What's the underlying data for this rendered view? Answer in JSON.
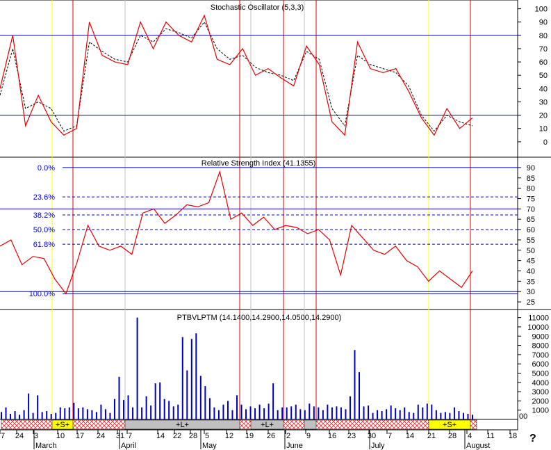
{
  "colors": {
    "red": "#e00000",
    "blue": "#0000c0",
    "yellow": "#ffff00",
    "gray": "#c0c0c0",
    "hatch": "#ff0000"
  },
  "help_glyph": "?",
  "x_axis": {
    "day_labels": [
      "7",
      "24",
      "3",
      "10",
      "17",
      "24",
      "31",
      "7",
      "14",
      "22",
      "28",
      "5",
      "12",
      "19",
      "26",
      "2",
      "9",
      "16",
      "23",
      "30",
      "7",
      "14",
      "21",
      "28",
      "4",
      "11",
      "18"
    ],
    "month_labels": [
      "March",
      "April",
      "May",
      "June",
      "July",
      "August"
    ]
  },
  "stochastic": {
    "title": "Stochastic Oscillator (5,3,3)",
    "ticks": [
      "100",
      "90",
      "80",
      "70",
      "60",
      "50",
      "40",
      "30",
      "20",
      "10",
      "0"
    ],
    "ylim": [
      -10,
      105
    ],
    "reference_lines": [
      80,
      20
    ],
    "k_values": [
      40,
      80,
      12,
      35,
      15,
      5,
      10,
      90,
      65,
      60,
      58,
      90,
      70,
      90,
      80,
      75,
      95,
      62,
      58,
      70,
      50,
      55,
      48,
      42,
      72,
      58,
      15,
      5,
      75,
      55,
      52,
      55,
      38,
      18,
      5,
      25,
      10,
      18
    ],
    "d_values": [
      35,
      70,
      25,
      30,
      25,
      8,
      12,
      75,
      68,
      62,
      60,
      80,
      75,
      85,
      82,
      78,
      90,
      70,
      62,
      65,
      56,
      52,
      50,
      46,
      68,
      62,
      25,
      12,
      65,
      58,
      55,
      52,
      42,
      20,
      8,
      20,
      15,
      12
    ]
  },
  "rsi": {
    "title": "Relative Strength Index (41.1355)",
    "ticks": [
      "90",
      "85",
      "80",
      "75",
      "70",
      "65",
      "60",
      "55",
      "50",
      "45",
      "40",
      "35",
      "30",
      "25"
    ],
    "ylim": [
      22,
      93
    ],
    "reference_lines": [
      70,
      30
    ],
    "fib_labels": [
      "0.0%",
      "23.6%",
      "38.2%",
      "50.0%",
      "61.8%",
      "100.0%"
    ],
    "fib_values": [
      90,
      75.8,
      67.1,
      60,
      52.9,
      29
    ],
    "values": [
      52,
      55,
      43,
      47,
      46,
      36,
      29,
      44,
      62,
      52,
      50,
      52,
      48,
      68,
      70,
      63,
      67,
      72,
      71,
      73,
      88,
      65,
      68,
      62,
      66,
      60,
      62,
      61,
      58,
      60,
      55,
      38,
      62,
      56,
      50,
      48,
      52,
      45,
      42,
      35,
      40,
      36,
      32,
      40
    ]
  },
  "volume": {
    "title": "PTBVLPTM (14.1400,14.2900,14.0500,14.2900)",
    "ticks": [
      "11000",
      "10000",
      "9000",
      "8000",
      "7000",
      "6000",
      "5000",
      "4000",
      "3000",
      "2000",
      "1000",
      "00"
    ],
    "ylim": [
      0,
      11500
    ],
    "values": [
      800,
      1300,
      600,
      900,
      500,
      1000,
      2800,
      700,
      2600,
      800,
      900,
      600,
      700,
      1300,
      1200,
      1300,
      1800,
      1200,
      1300,
      1100,
      1000,
      800,
      1600,
      1100,
      700,
      2200,
      4600,
      2100,
      2600,
      1300,
      11000,
      1300,
      2500,
      1500,
      3900,
      4000,
      2200,
      2000,
      1400,
      1600,
      8900,
      5300,
      8700,
      9300,
      4700,
      3600,
      2300,
      1300,
      1000,
      1600,
      2000,
      1000,
      2600,
      1600,
      1100,
      1400,
      1200,
      1600,
      1200,
      1700,
      3900,
      1000,
      1300,
      1300,
      1400,
      1600,
      1100,
      1000,
      1700,
      1400,
      1300,
      1000,
      1600,
      1300,
      1400,
      1300,
      1100,
      2500,
      7500,
      5100,
      1400,
      1500,
      700,
      1000,
      900,
      1100,
      1500,
      1200,
      1000,
      1300,
      800,
      700,
      1600,
      1300,
      1700,
      1600,
      1000,
      700,
      800,
      700,
      1300,
      900,
      700,
      600,
      500
    ]
  },
  "signals": [
    {
      "label": "+S+",
      "kind": "short"
    },
    {
      "label": "+L+",
      "kind": "long"
    },
    {
      "label": "+L+",
      "kind": "long"
    },
    {
      "label": "+S+",
      "kind": "short"
    }
  ],
  "volume_axis_extra": "00"
}
